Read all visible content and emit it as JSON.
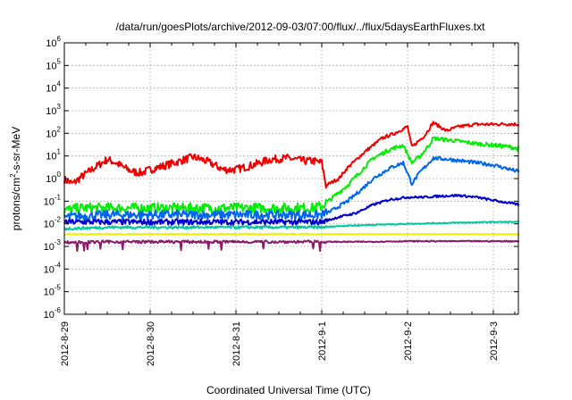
{
  "chart_data": {
    "type": "line",
    "title": "/data/run/goesPlots/archive/2012-09-03/07:00/flux/../flux/5daysEarthFluxes.txt",
    "xlabel": "Coordinated Universal Time (UTC)",
    "ylabel_base": "protons/cm",
    "ylabel_exp": "2",
    "ylabel_rest": "-s-sr-MeV",
    "y_scale": "log",
    "ylim": [
      1e-06,
      1000000.0
    ],
    "y_ticks": [
      {
        "mant": "10",
        "exp": "-6",
        "value": 1e-06
      },
      {
        "mant": "10",
        "exp": "-5",
        "value": 1e-05
      },
      {
        "mant": "10",
        "exp": "-4",
        "value": 0.0001
      },
      {
        "mant": "10",
        "exp": "-3",
        "value": 0.001
      },
      {
        "mant": "10",
        "exp": "-2",
        "value": 0.01
      },
      {
        "mant": "10",
        "exp": "-1",
        "value": 0.1
      },
      {
        "mant": "10",
        "exp": "0",
        "value": 1
      },
      {
        "mant": "10",
        "exp": "1",
        "value": 10
      },
      {
        "mant": "10",
        "exp": "2",
        "value": 100
      },
      {
        "mant": "10",
        "exp": "3",
        "value": 1000
      },
      {
        "mant": "10",
        "exp": "4",
        "value": 10000
      },
      {
        "mant": "10",
        "exp": "5",
        "value": 100000
      },
      {
        "mant": "10",
        "exp": "6",
        "value": 1000000
      }
    ],
    "xlim": [
      "2012-08-29",
      "2012-09-03 07:00"
    ],
    "x_ticks": [
      {
        "label": "2012-8-29",
        "day": 0
      },
      {
        "label": "2012-8-30",
        "day": 1
      },
      {
        "label": "2012-8-31",
        "day": 2
      },
      {
        "label": "2012-9-1",
        "day": 3
      },
      {
        "label": "2012-9-2",
        "day": 4
      },
      {
        "label": "2012-9-3",
        "day": 5
      }
    ],
    "grid": true,
    "legend": "none",
    "series": [
      {
        "color": "#ee0000",
        "points": [
          [
            0,
            0.9
          ],
          [
            0.1,
            0.6
          ],
          [
            0.2,
            1.2
          ],
          [
            0.35,
            3
          ],
          [
            0.5,
            7
          ],
          [
            0.6,
            5
          ],
          [
            0.7,
            3
          ],
          [
            0.8,
            2
          ],
          [
            0.9,
            1.8
          ],
          [
            1.0,
            2.5
          ],
          [
            1.2,
            4
          ],
          [
            1.35,
            6
          ],
          [
            1.5,
            9
          ],
          [
            1.6,
            7
          ],
          [
            1.7,
            5
          ],
          [
            1.85,
            2.5
          ],
          [
            2.0,
            2.5
          ],
          [
            2.2,
            4
          ],
          [
            2.4,
            7
          ],
          [
            2.6,
            8
          ],
          [
            2.8,
            6
          ],
          [
            2.9,
            6
          ],
          [
            3.0,
            5
          ],
          [
            3.05,
            0.5
          ],
          [
            3.2,
            1
          ],
          [
            3.3,
            3
          ],
          [
            3.5,
            15
          ],
          [
            3.7,
            60
          ],
          [
            3.85,
            100
          ],
          [
            4.0,
            200
          ],
          [
            4.05,
            25
          ],
          [
            4.2,
            80
          ],
          [
            4.3,
            300
          ],
          [
            4.45,
            130
          ],
          [
            4.6,
            200
          ],
          [
            4.8,
            250
          ],
          [
            5.0,
            250
          ],
          [
            5.15,
            260
          ],
          [
            5.3,
            250
          ]
        ]
      },
      {
        "color": "#00ee00",
        "points": [
          [
            0,
            0.04
          ],
          [
            0.2,
            0.05
          ],
          [
            0.5,
            0.05
          ],
          [
            1.0,
            0.05
          ],
          [
            1.5,
            0.05
          ],
          [
            2.0,
            0.05
          ],
          [
            2.5,
            0.05
          ],
          [
            2.9,
            0.05
          ],
          [
            3.0,
            0.06
          ],
          [
            3.1,
            0.12
          ],
          [
            3.3,
            0.5
          ],
          [
            3.45,
            2
          ],
          [
            3.6,
            8
          ],
          [
            3.8,
            20
          ],
          [
            3.95,
            30
          ],
          [
            4.05,
            5
          ],
          [
            4.15,
            10
          ],
          [
            4.25,
            30
          ],
          [
            4.3,
            60
          ],
          [
            4.5,
            50
          ],
          [
            4.8,
            35
          ],
          [
            5.0,
            30
          ],
          [
            5.2,
            25
          ],
          [
            5.3,
            20
          ]
        ]
      },
      {
        "color": "#0066ee",
        "points": [
          [
            0,
            0.02
          ],
          [
            0.5,
            0.025
          ],
          [
            1.0,
            0.025
          ],
          [
            1.5,
            0.025
          ],
          [
            2.0,
            0.025
          ],
          [
            2.5,
            0.025
          ],
          [
            2.9,
            0.025
          ],
          [
            3.0,
            0.025
          ],
          [
            3.1,
            0.035
          ],
          [
            3.3,
            0.1
          ],
          [
            3.45,
            0.3
          ],
          [
            3.6,
            1
          ],
          [
            3.8,
            3
          ],
          [
            3.95,
            5
          ],
          [
            4.05,
            0.6
          ],
          [
            4.15,
            2
          ],
          [
            4.3,
            8
          ],
          [
            4.5,
            7
          ],
          [
            4.8,
            5
          ],
          [
            5.0,
            4
          ],
          [
            5.3,
            2
          ]
        ]
      },
      {
        "color": "#0000cc",
        "points": [
          [
            0,
            0.012
          ],
          [
            0.5,
            0.012
          ],
          [
            1.0,
            0.012
          ],
          [
            1.5,
            0.012
          ],
          [
            2.0,
            0.012
          ],
          [
            2.5,
            0.012
          ],
          [
            2.9,
            0.012
          ],
          [
            3.0,
            0.012
          ],
          [
            3.2,
            0.02
          ],
          [
            3.4,
            0.03
          ],
          [
            3.6,
            0.07
          ],
          [
            3.8,
            0.12
          ],
          [
            4.0,
            0.15
          ],
          [
            4.2,
            0.15
          ],
          [
            4.4,
            0.17
          ],
          [
            4.6,
            0.18
          ],
          [
            4.8,
            0.15
          ],
          [
            5.0,
            0.11
          ],
          [
            5.3,
            0.07
          ]
        ]
      },
      {
        "color": "#00c8a0",
        "points": [
          [
            0,
            0.006
          ],
          [
            0.5,
            0.007
          ],
          [
            1.0,
            0.007
          ],
          [
            1.5,
            0.007
          ],
          [
            2.0,
            0.007
          ],
          [
            2.5,
            0.007
          ],
          [
            3.0,
            0.007
          ],
          [
            3.2,
            0.008
          ],
          [
            3.6,
            0.009
          ],
          [
            4.0,
            0.01
          ],
          [
            4.5,
            0.011
          ],
          [
            5.0,
            0.012
          ],
          [
            5.3,
            0.012
          ]
        ]
      },
      {
        "color": "#f0f000",
        "points": [
          [
            0,
            0.0035
          ],
          [
            0.5,
            0.0035
          ],
          [
            1.0,
            0.0035
          ],
          [
            1.5,
            0.0035
          ],
          [
            2.0,
            0.0035
          ],
          [
            2.5,
            0.0035
          ],
          [
            3.0,
            0.0035
          ],
          [
            3.5,
            0.0035
          ],
          [
            4.0,
            0.0035
          ],
          [
            4.5,
            0.0035
          ],
          [
            5.0,
            0.0035
          ],
          [
            5.3,
            0.0035
          ]
        ]
      },
      {
        "color": "#8b1a6b",
        "points": [
          [
            0,
            0.0015
          ],
          [
            0.5,
            0.0016
          ],
          [
            1.0,
            0.0016
          ],
          [
            1.5,
            0.0016
          ],
          [
            2.0,
            0.0016
          ],
          [
            2.5,
            0.0016
          ],
          [
            3.0,
            0.0016
          ],
          [
            3.5,
            0.0016
          ],
          [
            4.0,
            0.0017
          ],
          [
            4.5,
            0.0017
          ],
          [
            5.0,
            0.0017
          ],
          [
            5.3,
            0.0017
          ]
        ]
      }
    ]
  }
}
